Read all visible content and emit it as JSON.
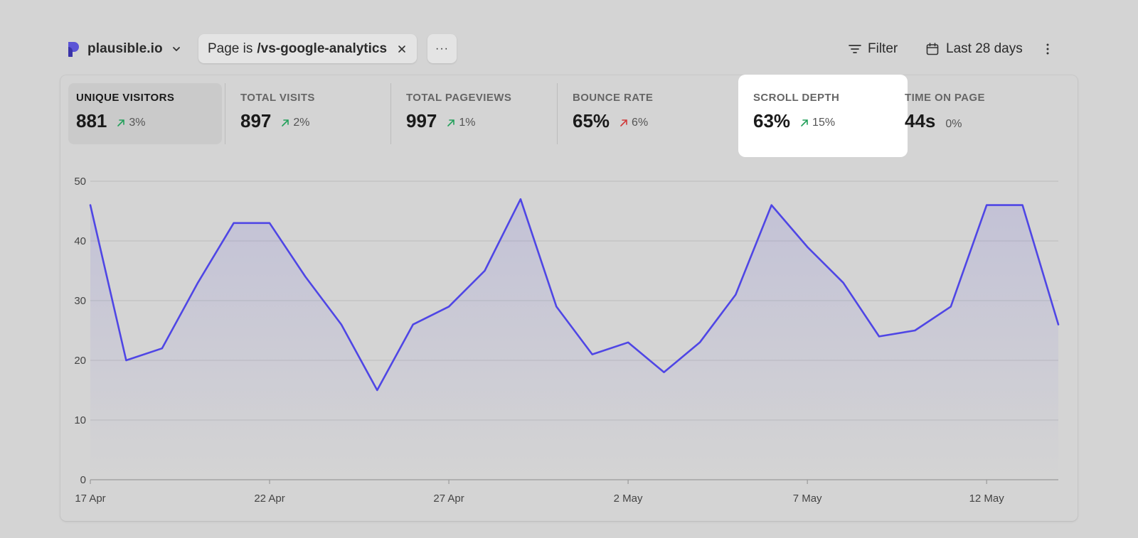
{
  "colors": {
    "accent": "#4f46e5",
    "up_good": "#22a05a",
    "up_bad": "#d03a3a"
  },
  "header": {
    "site_name": "plausible.io",
    "filter": {
      "prefix": "Page is",
      "value": "/vs-google-analytics"
    },
    "more_label": "···",
    "filter_button_label": "Filter",
    "date_range_label": "Last 28 days"
  },
  "metrics": [
    {
      "label": "UNIQUE VISITORS",
      "value": "881",
      "change": "3%",
      "trend": "up-good"
    },
    {
      "label": "TOTAL VISITS",
      "value": "897",
      "change": "2%",
      "trend": "up-good"
    },
    {
      "label": "TOTAL PAGEVIEWS",
      "value": "997",
      "change": "1%",
      "trend": "up-good"
    },
    {
      "label": "BOUNCE RATE",
      "value": "65%",
      "change": "6%",
      "trend": "up-bad"
    },
    {
      "label": "SCROLL DEPTH",
      "value": "63%",
      "change": "15%",
      "trend": "up-good"
    },
    {
      "label": "TIME ON PAGE",
      "value": "44s",
      "change": "0%",
      "trend": "none"
    }
  ],
  "chart_data": {
    "type": "area",
    "x": [
      "17 Apr",
      "18 Apr",
      "19 Apr",
      "20 Apr",
      "21 Apr",
      "22 Apr",
      "23 Apr",
      "24 Apr",
      "25 Apr",
      "26 Apr",
      "27 Apr",
      "28 Apr",
      "29 Apr",
      "30 Apr",
      "1 May",
      "2 May",
      "3 May",
      "4 May",
      "5 May",
      "6 May",
      "7 May",
      "8 May",
      "9 May",
      "10 May",
      "11 May",
      "12 May",
      "13 May",
      "14 May"
    ],
    "series": [
      {
        "values": [
          46,
          20,
          22,
          33,
          43,
          43,
          34,
          26,
          15,
          26,
          29,
          35,
          47,
          29,
          21,
          23,
          18,
          23,
          31,
          46,
          39,
          33,
          24,
          25,
          29,
          46,
          46,
          26
        ]
      }
    ],
    "x_tick_labels": [
      "17 Apr",
      "22 Apr",
      "27 Apr",
      "2 May",
      "7 May",
      "12 May"
    ],
    "y_ticks": [
      0,
      10,
      20,
      30,
      40,
      50
    ],
    "ylim": [
      0,
      50
    ],
    "grid": true,
    "legend": "none"
  }
}
